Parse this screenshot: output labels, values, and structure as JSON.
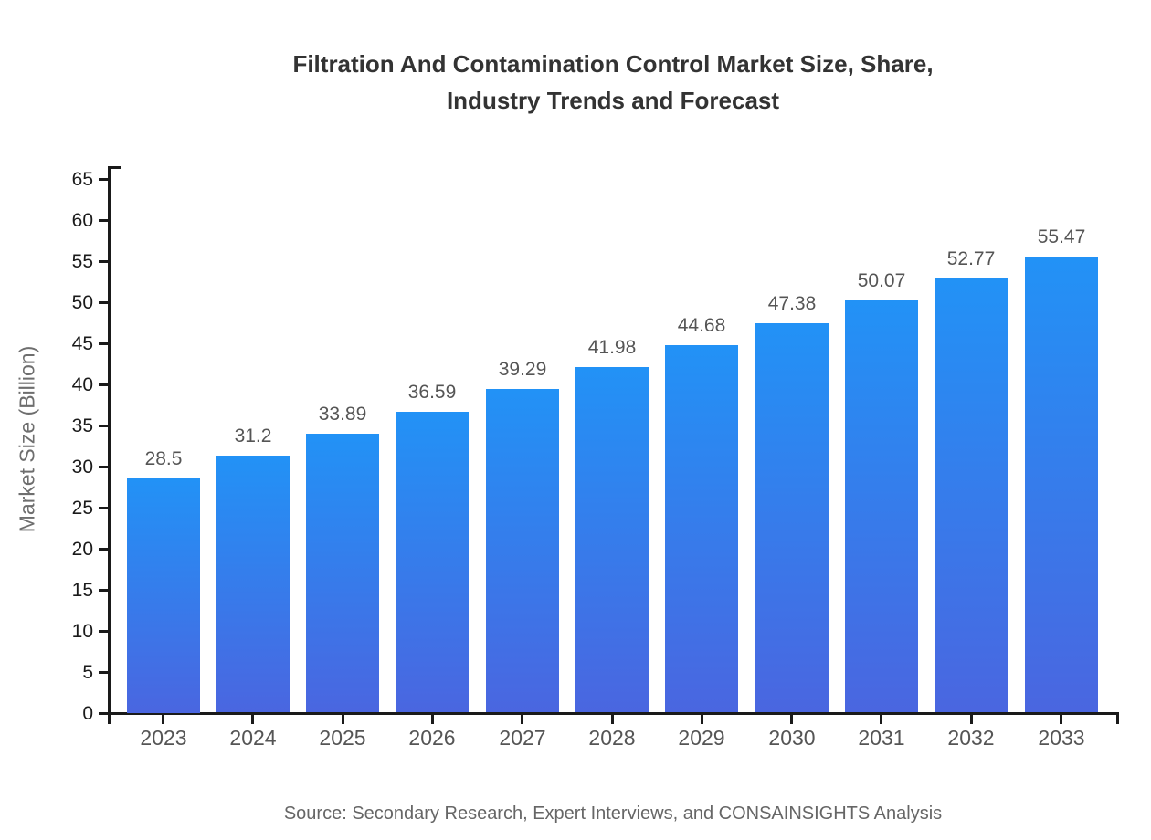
{
  "page": {
    "title_lines": [
      "Filtration And Contamination Control Market Size, Share,",
      "Industry Trends and Forecast"
    ],
    "source_note": "Source: Secondary Research, Expert Interviews, and CONSAINSIGHTS Analysis"
  },
  "colors": {
    "bar_gradient_top": "#2292F6",
    "bar_gradient_bottom": "#4A66E0",
    "axis_line": "#1a1a1a",
    "title_text": "#333333",
    "y_tick_label": "#1a1a1a",
    "x_tick_label": "#555555",
    "value_label": "#555555",
    "axis_title": "#6e6e6e",
    "source_text": "#666666"
  },
  "chart_data": {
    "type": "bar",
    "title": "Filtration And Contamination Control Market Size, Share, Industry Trends and Forecast",
    "categories": [
      "2023",
      "2024",
      "2025",
      "2026",
      "2027",
      "2028",
      "2029",
      "2030",
      "2031",
      "2032",
      "2033"
    ],
    "values": [
      28.5,
      31.2,
      33.89,
      36.59,
      39.29,
      41.98,
      44.68,
      47.38,
      50.07,
      52.77,
      55.47
    ],
    "value_labels": [
      "28.5",
      "31.2",
      "33.89",
      "36.59",
      "39.29",
      "41.98",
      "44.68",
      "47.38",
      "50.07",
      "52.77",
      "55.47"
    ],
    "xlabel": "",
    "ylabel": "Market Size (Billion)",
    "ylim": [
      0,
      65
    ],
    "y_ticks": [
      0,
      5,
      10,
      15,
      20,
      25,
      30,
      35,
      40,
      45,
      50,
      55,
      60,
      65
    ],
    "grid": false,
    "legend_position": "none",
    "source": "Source: Secondary Research, Expert Interviews, and CONSAINSIGHTS Analysis"
  }
}
